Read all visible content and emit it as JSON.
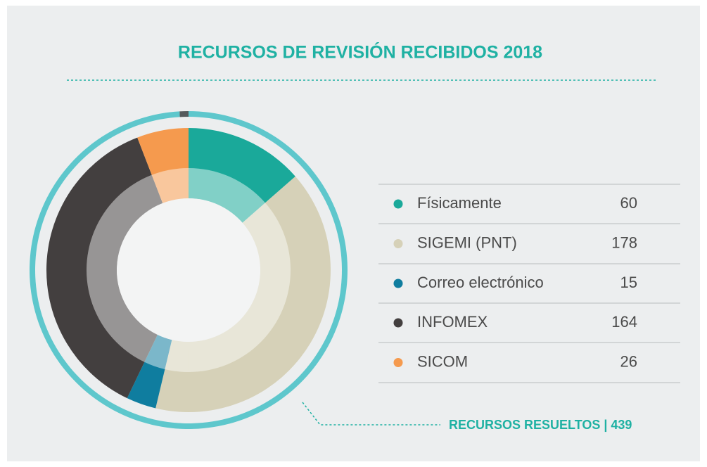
{
  "chart_data": {
    "type": "donut",
    "title": "RECURSOS DE REVISIÓN RECIBIDOS 2018",
    "categories": [
      "Físicamente",
      "SIGEMI (PNT)",
      "Correo electrónico",
      "INFOMEX",
      "SICOM"
    ],
    "values": [
      60,
      178,
      15,
      164,
      26
    ],
    "colors": [
      "#1aa99a",
      "#d6d1b8",
      "#0f7d9f",
      "#433f3f",
      "#f59a4e"
    ],
    "resolved": {
      "label": "RECURSOS RESUELTOS | 439",
      "value": 439,
      "color": "#5ec7cc"
    }
  }
}
